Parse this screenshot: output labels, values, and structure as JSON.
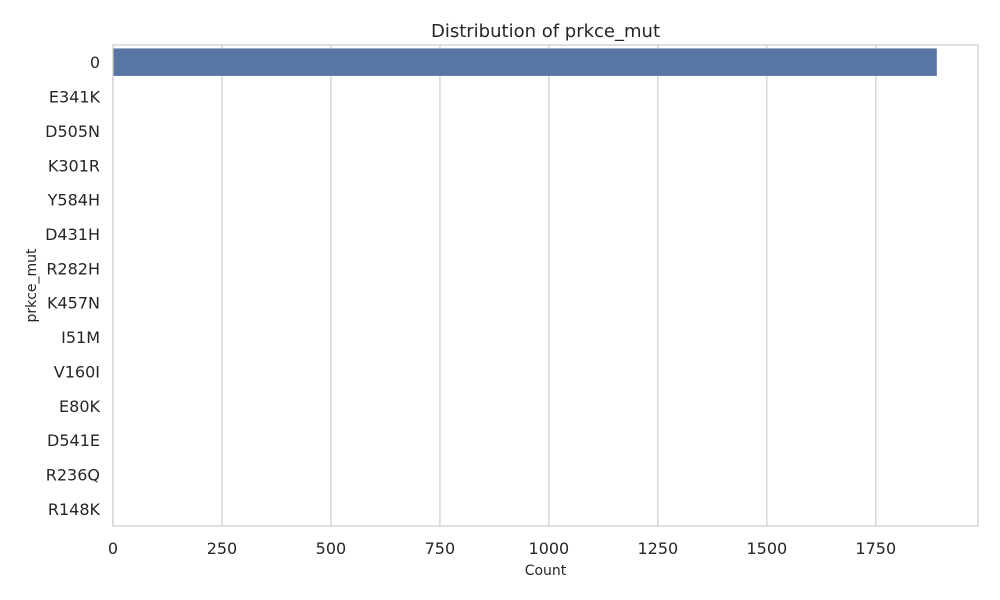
{
  "chart_data": {
    "type": "bar",
    "orientation": "horizontal",
    "title": "Distribution of prkce_mut",
    "xlabel": "Count",
    "ylabel": "prkce_mut",
    "categories": [
      "0",
      "E341K",
      "D505N",
      "K301R",
      "Y584H",
      "D431H",
      "R282H",
      "K457N",
      "I51M",
      "V160I",
      "E80K",
      "D541E",
      "R236Q",
      "R148K"
    ],
    "values": [
      1890,
      1,
      1,
      1,
      1,
      1,
      1,
      1,
      1,
      1,
      1,
      1,
      1,
      1
    ],
    "xticks": [
      0,
      250,
      500,
      750,
      1000,
      1250,
      1500,
      1750
    ],
    "xlim": [
      0,
      1984.5
    ],
    "grid": "vertical",
    "bar_color": "#5975a4",
    "grid_color": "#cccccc",
    "spine_color": "#cccccc"
  }
}
